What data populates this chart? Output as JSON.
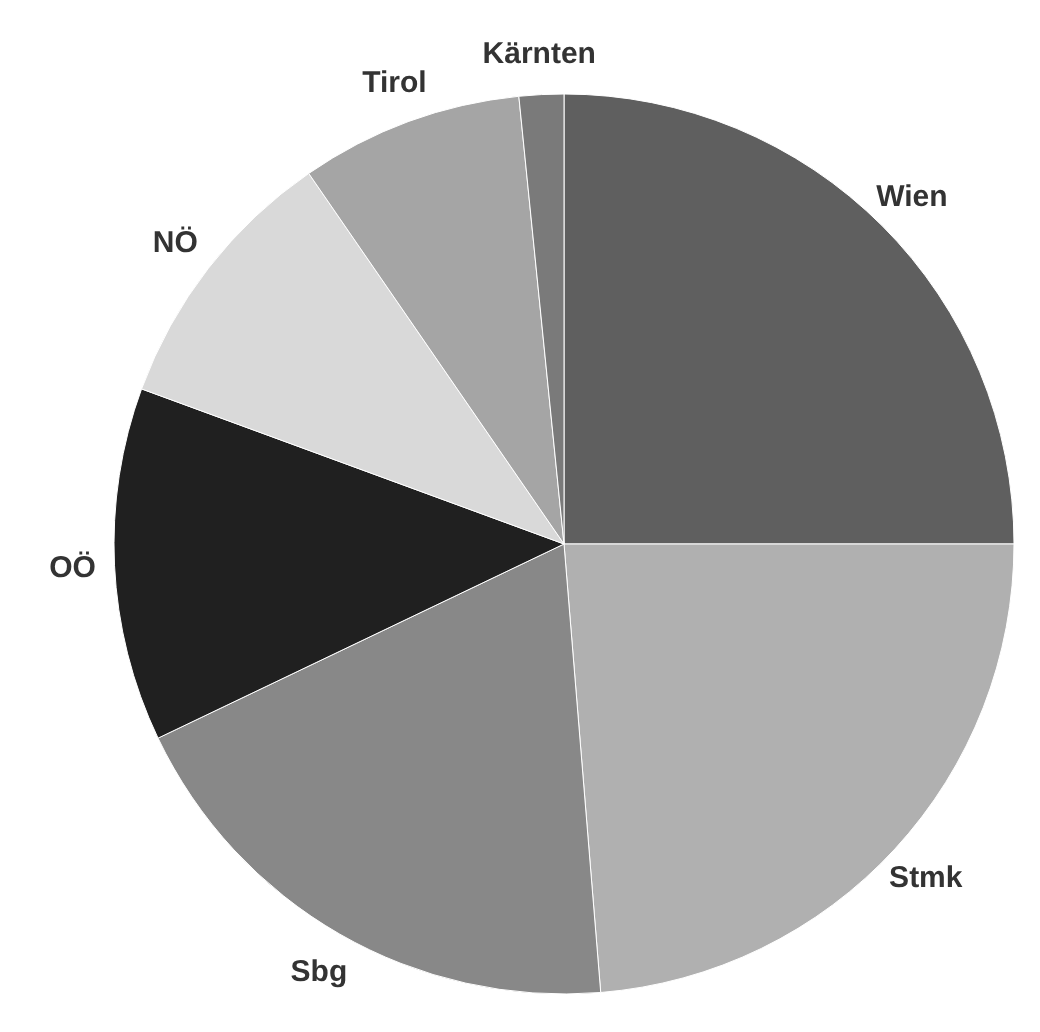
{
  "chart_data": {
    "type": "pie",
    "categories": [
      "Wien",
      "Stmk",
      "Sbg",
      "OÖ",
      "NÖ",
      "Tirol",
      "Kärnten"
    ],
    "values": [
      25,
      23.7,
      19.2,
      12.7,
      9.8,
      8,
      1.6
    ],
    "colors": [
      "#5f5f5f",
      "#b0b0b0",
      "#888888",
      "#202020",
      "#d9d9d9",
      "#a5a5a5",
      "#7a7a7a"
    ]
  }
}
